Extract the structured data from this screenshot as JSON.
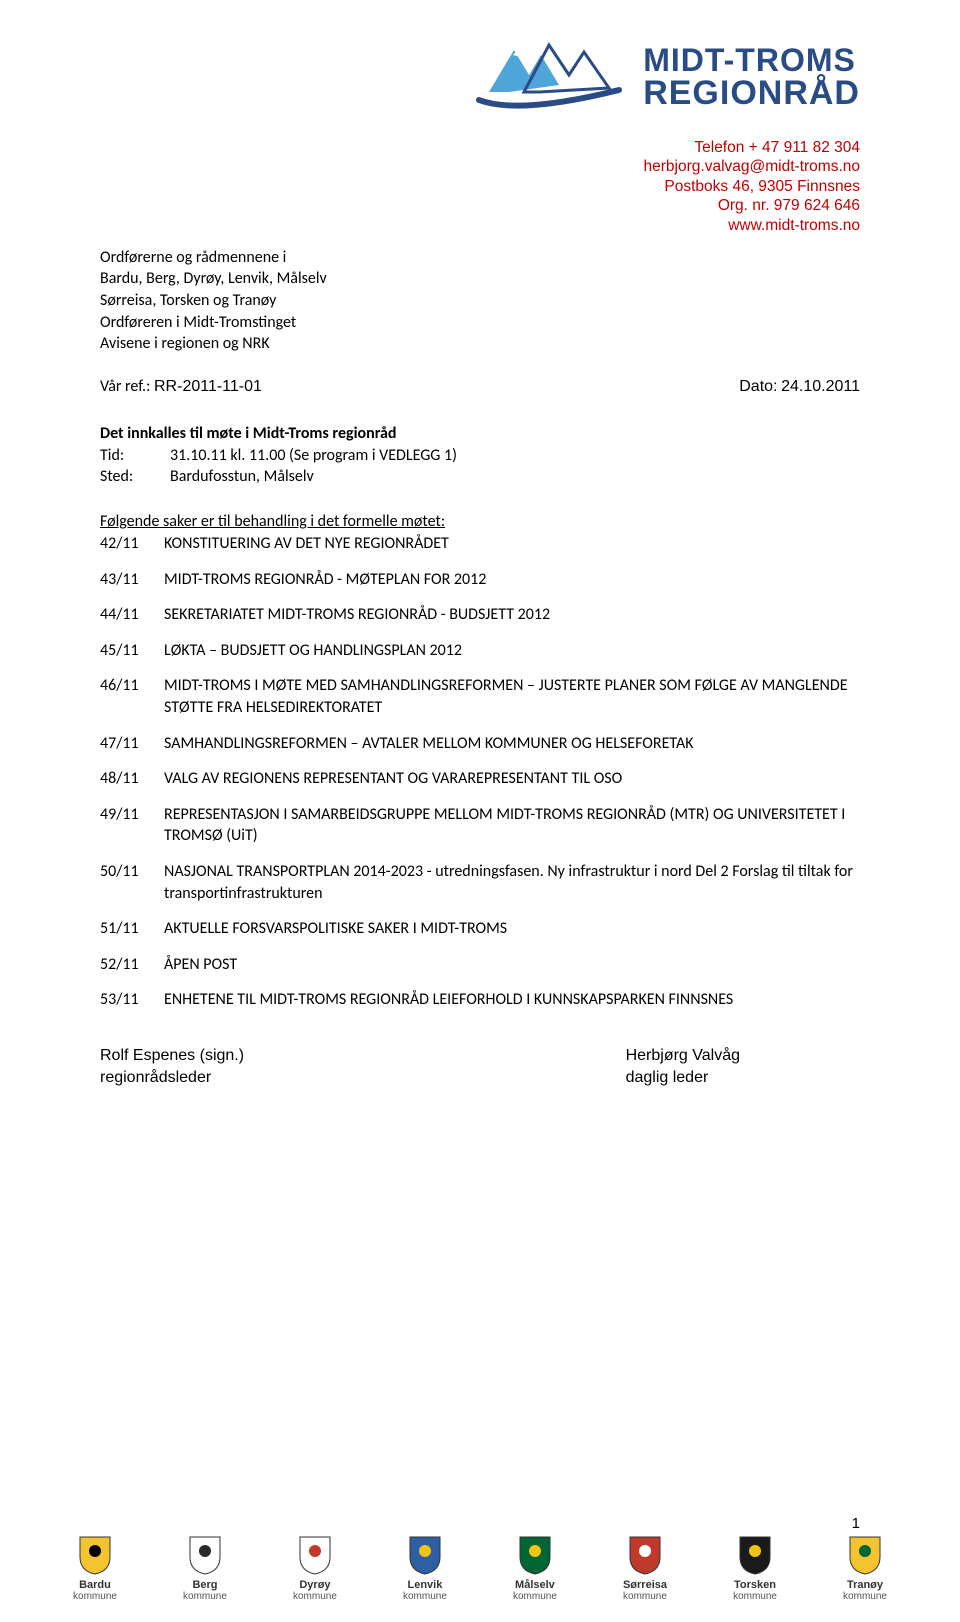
{
  "logo": {
    "line1": "MIDT-TROMS",
    "line2": "REGIONRÅD",
    "mountain_stroke": "#2a4c85",
    "mountain_accent": "#4da5d9",
    "swoosh": "#2a4c85"
  },
  "contact": {
    "phone": "Telefon + 47 911 82 304",
    "email": "herbjorg.valvag@midt-troms.no",
    "post": "Postboks 46, 9305 Finnsnes",
    "org": "Org. nr. 979 624 646",
    "web": "www.midt-troms.no"
  },
  "recipients": [
    "Ordførerne og rådmennene i",
    "Bardu, Berg, Dyrøy, Lenvik, Målselv",
    "Sørreisa, Torsken og Tranøy",
    "Ordføreren i Midt-Tromstinget",
    "Avisene i regionen og NRK"
  ],
  "ref": {
    "label": "Vår ref.:",
    "value": "RR-2011-11-01",
    "date_label": "Dato:",
    "date_value": "24.10.2011"
  },
  "meeting": {
    "title": "Det innkalles til møte i Midt-Troms regionråd",
    "tid_label": "Tid:",
    "tid_value": "31.10.11 kl. 11.00 (Se program i VEDLEGG 1)",
    "sted_label": "Sted:",
    "sted_value": "Bardufosstun, Målselv"
  },
  "agenda_heading": "Følgende saker er til behandling i det formelle møtet:",
  "agenda": [
    {
      "num": "42/11",
      "text": "KONSTITUERING AV DET NYE REGIONRÅDET"
    },
    {
      "num": "43/11",
      "text": "MIDT-TROMS REGIONRÅD - MØTEPLAN FOR 2012"
    },
    {
      "num": "44/11",
      "text": "SEKRETARIATET MIDT-TROMS REGIONRÅD - BUDSJETT 2012"
    },
    {
      "num": "45/11",
      "text": "LØKTA – BUDSJETT OG HANDLINGSPLAN 2012"
    },
    {
      "num": "46/11",
      "text": "MIDT-TROMS I MØTE MED SAMHANDLINGSREFORMEN – JUSTERTE PLANER SOM FØLGE AV MANGLENDE STØTTE FRA HELSEDIREKTORATET"
    },
    {
      "num": "47/11",
      "text": "SAMHANDLINGSREFORMEN – AVTALER MELLOM KOMMUNER OG HELSEFORETAK"
    },
    {
      "num": "48/11",
      "text": "VALG AV REGIONENS REPRESENTANT OG VARAREPRESENTANT TIL OSO"
    },
    {
      "num": "49/11",
      "text": "REPRESENTASJON I SAMARBEIDSGRUPPE MELLOM MIDT-TROMS REGIONRÅD (MTR) OG UNIVERSITETET I TROMSØ (UiT)"
    },
    {
      "num": "50/11",
      "text": "NASJONAL TRANSPORTPLAN 2014-2023  -  utredningsfasen. Ny infrastruktur i nord Del 2 Forslag til tiltak for transportinfrastrukturen"
    },
    {
      "num": "51/11",
      "text": "AKTUELLE FORSVARSPOLITISKE SAKER I MIDT-TROMS"
    },
    {
      "num": "52/11",
      "text": "ÅPEN POST"
    },
    {
      "num": "53/11",
      "text": "ENHETENE TIL MIDT-TROMS REGIONRÅD LEIEFORHOLD I KUNNSKAPSPARKEN FINNSNES"
    }
  ],
  "signatures": {
    "left_name": "Rolf Espenes (sign.)",
    "left_title": "regionrådsleder",
    "right_name": "Herbjørg Valvåg",
    "right_title": "daglig leder"
  },
  "page_number": "1",
  "kommuner": [
    {
      "name": "Bardu",
      "fill": "#f4c430",
      "accent": "#000000"
    },
    {
      "name": "Berg",
      "fill": "#ffffff",
      "accent": "#2a2a2a"
    },
    {
      "name": "Dyrøy",
      "fill": "#ffffff",
      "accent": "#c0392b"
    },
    {
      "name": "Lenvik",
      "fill": "#2e5fa3",
      "accent": "#f1c40f"
    },
    {
      "name": "Målselv",
      "fill": "#006633",
      "accent": "#f1c40f"
    },
    {
      "name": "Sørreisa",
      "fill": "#c0392b",
      "accent": "#ffffff"
    },
    {
      "name": "Torsken",
      "fill": "#1a1a1a",
      "accent": "#f1c40f"
    },
    {
      "name": "Tranøy",
      "fill": "#f4c430",
      "accent": "#006633"
    }
  ],
  "kommune_sub": "kommune"
}
